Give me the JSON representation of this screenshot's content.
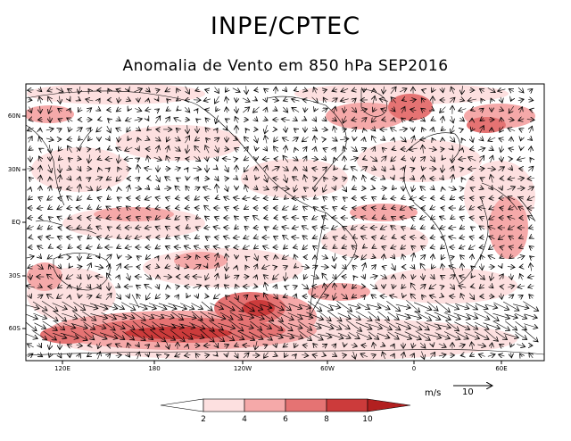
{
  "header": {
    "agency": "INPE/CPTEC",
    "title": "Anomalia de Vento em 850 hPa SEP2016"
  },
  "map": {
    "lat_labels": [
      "60N",
      "30N",
      "EQ",
      "30S",
      "60S"
    ],
    "lon_labels": [
      "120E",
      "180",
      "120W",
      "60W",
      "0",
      "60E"
    ]
  },
  "reference_vector": {
    "unit": "m/s",
    "value": "10"
  },
  "colorbar": {
    "levels": [
      "2",
      "4",
      "6",
      "8",
      "10"
    ],
    "colors": [
      "#ffffff",
      "#fde0e0",
      "#f5a9a9",
      "#e57373",
      "#cc3b3b",
      "#b22020"
    ]
  }
}
